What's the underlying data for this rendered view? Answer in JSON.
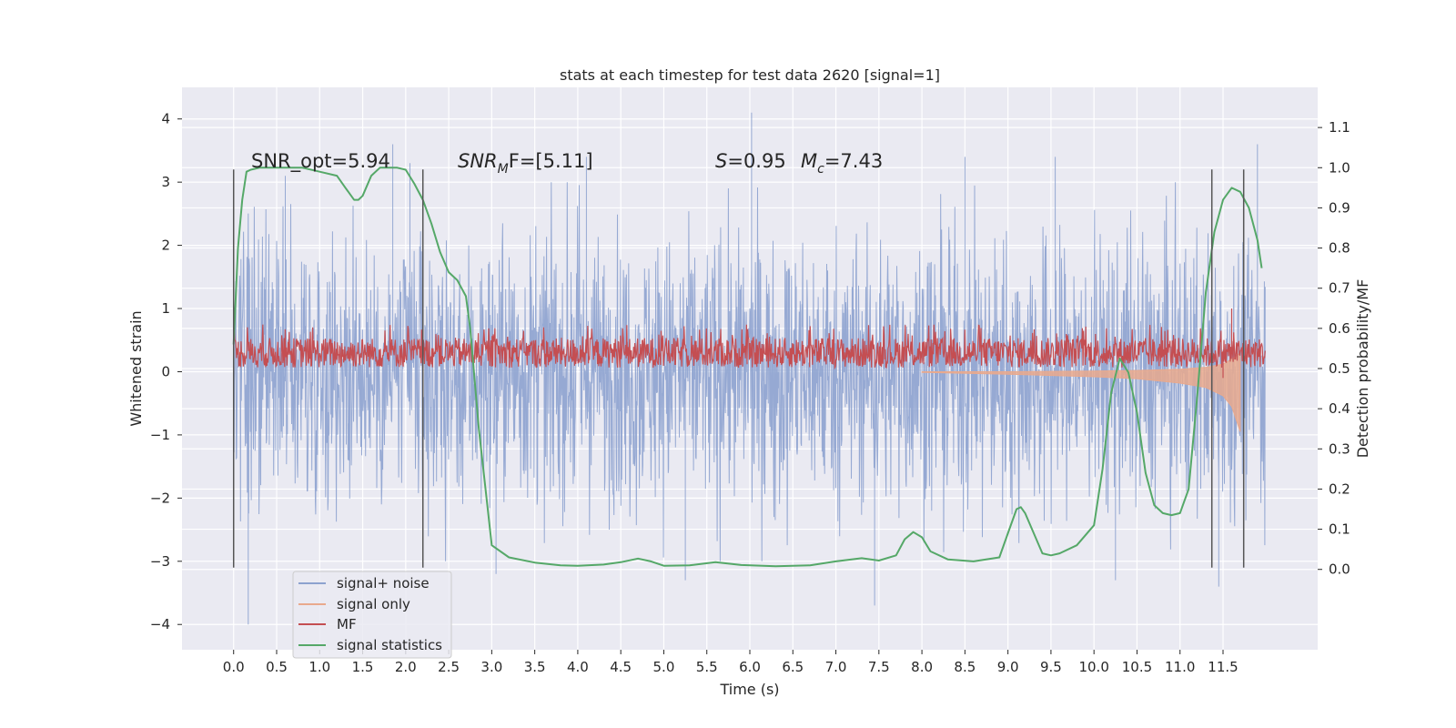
{
  "chart_data": {
    "type": "line",
    "title": "stats at each timestep for test data 2620 [signal=1]",
    "xlabel": "Time (s)",
    "ylabel": "Whitened strain",
    "ylabel_right": "Detection probability/MF",
    "xlim": [
      -0.6,
      12.6
    ],
    "ylim": [
      -4.4,
      4.5
    ],
    "ylim_right": [
      -0.2,
      1.2
    ],
    "x_ticks": [
      0.0,
      0.5,
      1.0,
      1.5,
      2.0,
      2.5,
      3.0,
      3.5,
      4.0,
      4.5,
      5.0,
      5.5,
      6.0,
      6.5,
      7.0,
      7.5,
      8.0,
      8.5,
      9.0,
      9.5,
      10.0,
      10.5,
      11.0,
      11.5
    ],
    "x_tick_labels": [
      "0.0",
      "0.5",
      "1.0",
      "1.5",
      "2.0",
      "2.5",
      "3.0",
      "3.5",
      "4.0",
      "4.5",
      "5.0",
      "5.5",
      "6.0",
      "6.5",
      "7.0",
      "7.5",
      "8.0",
      "8.5",
      "9.0",
      "9.5",
      "10.0",
      "10.5",
      "11.0",
      "11.5"
    ],
    "y_ticks": [
      -4,
      -3,
      -2,
      -1,
      0,
      1,
      2,
      3,
      4
    ],
    "y_tick_labels": [
      "−4",
      "−3",
      "−2",
      "−1",
      "0",
      "1",
      "2",
      "3",
      "4"
    ],
    "y_ticks_right": [
      0.0,
      0.1,
      0.2,
      0.3,
      0.4,
      0.5,
      0.6,
      0.7,
      0.8,
      0.9,
      1.0,
      1.1
    ],
    "y_tick_labels_right": [
      "0.0",
      "0.1",
      "0.2",
      "0.3",
      "0.4",
      "0.5",
      "0.6",
      "0.7",
      "0.8",
      "0.9",
      "1.0",
      "1.1"
    ],
    "grid": true,
    "legend_position": "lower-left",
    "annotations": {
      "snr_opt_label": "SNR_opt=5.94",
      "snr_mf_prefix": "SNR",
      "snr_mf_sub": "M",
      "snr_mf_suffix": "F=[5.11]",
      "s_prefix": "S",
      "s_value": "=0.95",
      "mc_prefix": "M",
      "mc_sub": "c",
      "mc_value": "=7.43"
    },
    "vertical_markers": [
      {
        "x": 0.0,
        "y_range": [
          -3.1,
          3.2
        ]
      },
      {
        "x": 2.2,
        "y_range": [
          -3.1,
          3.2
        ]
      },
      {
        "x": 11.37,
        "y_range": [
          -3.1,
          3.2
        ]
      },
      {
        "x": 11.74,
        "y_range": [
          -3.1,
          3.2
        ]
      }
    ],
    "series": [
      {
        "name": "signal+ noise",
        "color": "#8da2cf",
        "axis": "left",
        "style": "noise",
        "x_range": [
          0.0,
          11.99
        ],
        "amplitude_typical": 1.9,
        "peaks": [
          [
            0.17,
            -4.0
          ],
          [
            0.6,
            3.1
          ],
          [
            1.85,
            3.6
          ],
          [
            2.05,
            3.3
          ],
          [
            3.05,
            -3.2
          ],
          [
            4.1,
            3.4
          ],
          [
            5.25,
            -3.3
          ],
          [
            6.02,
            4.1
          ],
          [
            7.45,
            -3.7
          ],
          [
            8.5,
            3.4
          ],
          [
            9.55,
            3.4
          ],
          [
            10.25,
            -3.3
          ],
          [
            11.45,
            -3.4
          ],
          [
            11.9,
            3.6
          ]
        ]
      },
      {
        "name": "signal only",
        "color": "#e9a98d",
        "axis": "left",
        "style": "chirp",
        "x": [
          8.0,
          9.0,
          10.0,
          10.5,
          11.0,
          11.3,
          11.5,
          11.6,
          11.7
        ],
        "lower": [
          -0.01,
          -0.04,
          -0.08,
          -0.11,
          -0.18,
          -0.25,
          -0.38,
          -0.55,
          -0.95
        ],
        "upper": [
          0.0,
          0.0,
          0.01,
          0.02,
          0.04,
          0.07,
          0.12,
          0.2,
          0.3
        ]
      },
      {
        "name": "MF",
        "color": "#c44e52",
        "axis": "left",
        "style": "band",
        "x_range": [
          0.0,
          11.99
        ],
        "band": [
          0.05,
          0.55
        ],
        "spikes": [
          [
            11.6,
            1.0
          ],
          [
            11.5,
            -0.1
          ]
        ]
      },
      {
        "name": "signal statistics",
        "color": "#55a868",
        "axis": "right",
        "x": [
          0.0,
          0.05,
          0.1,
          0.15,
          0.2,
          0.3,
          0.5,
          0.8,
          1.0,
          1.2,
          1.3,
          1.4,
          1.45,
          1.5,
          1.6,
          1.7,
          1.8,
          1.9,
          2.0,
          2.1,
          2.2,
          2.3,
          2.4,
          2.5,
          2.6,
          2.7,
          2.75,
          2.85,
          3.0,
          3.2,
          3.5,
          3.8,
          4.0,
          4.3,
          4.5,
          4.7,
          4.85,
          5.0,
          5.3,
          5.6,
          5.9,
          6.3,
          6.7,
          7.0,
          7.3,
          7.5,
          7.7,
          7.8,
          7.9,
          8.0,
          8.1,
          8.3,
          8.6,
          8.9,
          9.0,
          9.1,
          9.15,
          9.2,
          9.3,
          9.4,
          9.5,
          9.6,
          9.8,
          10.0,
          10.1,
          10.2,
          10.3,
          10.4,
          10.5,
          10.6,
          10.7,
          10.8,
          10.9,
          11.0,
          11.1,
          11.2,
          11.3,
          11.4,
          11.5,
          11.6,
          11.7,
          11.8,
          11.9,
          11.95
        ],
        "y": [
          0.56,
          0.8,
          0.92,
          0.99,
          0.995,
          1.0,
          1.0,
          1.0,
          0.99,
          0.98,
          0.95,
          0.92,
          0.92,
          0.93,
          0.98,
          1.0,
          1.0,
          1.0,
          0.995,
          0.96,
          0.92,
          0.86,
          0.79,
          0.74,
          0.72,
          0.68,
          0.6,
          0.35,
          0.06,
          0.03,
          0.017,
          0.01,
          0.009,
          0.012,
          0.018,
          0.027,
          0.02,
          0.009,
          0.01,
          0.018,
          0.011,
          0.008,
          0.01,
          0.02,
          0.028,
          0.022,
          0.035,
          0.075,
          0.093,
          0.08,
          0.045,
          0.025,
          0.02,
          0.03,
          0.09,
          0.15,
          0.155,
          0.14,
          0.09,
          0.04,
          0.035,
          0.04,
          0.06,
          0.11,
          0.25,
          0.44,
          0.525,
          0.49,
          0.39,
          0.24,
          0.16,
          0.14,
          0.135,
          0.14,
          0.2,
          0.43,
          0.69,
          0.84,
          0.92,
          0.95,
          0.94,
          0.9,
          0.82,
          0.75
        ]
      }
    ]
  }
}
